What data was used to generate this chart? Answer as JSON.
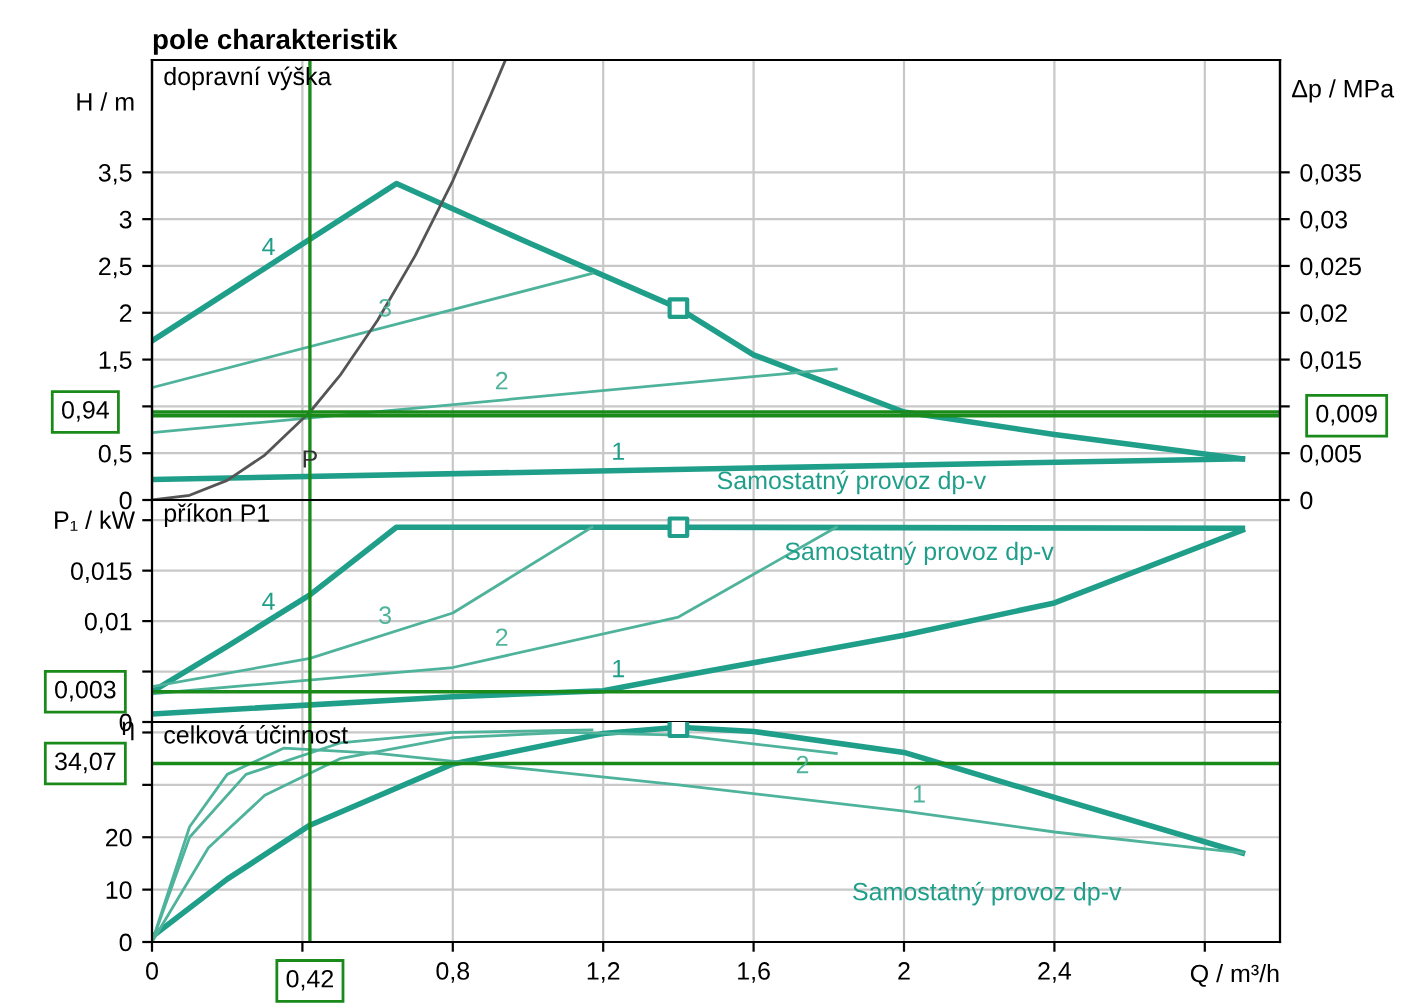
{
  "chart_data": [
    {
      "type": "line",
      "title": "pole charakteristik",
      "subtitle": "dopravní výška",
      "ylabel": "H / m",
      "y2label": "Δp / MPa",
      "xlim": [
        0,
        3.0
      ],
      "xticks": [
        0,
        0.4,
        0.8,
        1.2,
        1.6,
        2,
        2.4,
        2.8
      ],
      "tick_labels": "y",
      "ylim": [
        0,
        4.7
      ],
      "yticks": [
        0,
        {
          "value": 0.5,
          "label": "0,5"
        },
        {
          "value": 1,
          "label": null
        },
        {
          "value": 1.5,
          "label": "1,5"
        },
        2,
        {
          "value": 2.5,
          "label": "2,5"
        },
        3,
        {
          "value": 3.5,
          "label": "3,5"
        }
      ],
      "y2lim": [
        0,
        0.047
      ],
      "y2ticks": [
        0,
        {
          "value": 0.005,
          "label": "0,005"
        },
        {
          "value": 0.01,
          "label": null
        },
        {
          "value": 0.015,
          "label": "0,015"
        },
        {
          "value": 0.02,
          "label": "0,02"
        },
        {
          "value": 0.025,
          "label": "0,025"
        },
        {
          "value": 0.03,
          "label": "0,03"
        },
        {
          "value": 0.035,
          "label": "0,035"
        }
      ],
      "grid": true,
      "series": [
        {
          "name": "4",
          "color": "#1f9e89",
          "x": [
            0,
            0.65,
            1.0,
            1.4,
            1.6,
            2.0,
            2.4,
            2.9
          ],
          "values": [
            1.7,
            3.38,
            2.75,
            2.05,
            1.55,
            0.94,
            0.7,
            0.44
          ]
        },
        {
          "name": "3",
          "color": "#4fb39b",
          "x": [
            0,
            1.17
          ],
          "values": [
            1.2,
            2.42
          ]
        },
        {
          "name": "2",
          "color": "#4fb39b",
          "x": [
            0,
            1.82
          ],
          "values": [
            0.72,
            1.4
          ]
        },
        {
          "name": "1",
          "color": "#1f9e89",
          "x": [
            0,
            2.9
          ],
          "values": [
            0.22,
            0.44
          ]
        },
        {
          "color": "#555555",
          "x": [
            0,
            0.1,
            0.2,
            0.3,
            0.42,
            0.5,
            0.6,
            0.7,
            0.8,
            0.9,
            0.94
          ],
          "values": [
            0,
            0.05,
            0.21,
            0.48,
            0.94,
            1.33,
            1.92,
            2.61,
            3.41,
            4.32,
            4.7
          ]
        },
        {
          "type": "scatter",
          "marker": "square",
          "color": "#1f9e89",
          "x": [
            1.4
          ],
          "values": [
            2.05
          ]
        }
      ],
      "ref_lines": [
        {
          "axis": "x",
          "value": 0.42,
          "label": "P",
          "color": "#1a8a1a"
        },
        {
          "axis": "y",
          "value": 0.94,
          "label": "0,94",
          "color": "#1a8a1a"
        },
        {
          "axis": "y2",
          "value": 0.009,
          "label": "0,009",
          "color": "#1a8a1a"
        }
      ],
      "annotations": [
        "Samostatný provoz dp-v"
      ]
    },
    {
      "type": "line",
      "subtitle": "příkon P1",
      "ylabel": "P₁ / kW",
      "xlim": [
        0,
        3.0
      ],
      "xticks": [
        0,
        0.4,
        0.8,
        1.2,
        1.6,
        2,
        2.4,
        2.8
      ],
      "tick_labels": "y",
      "ylim": [
        0,
        0.022
      ],
      "yticks": [
        0,
        {
          "value": 0.005,
          "label": null
        },
        {
          "value": 0.01,
          "label": "0,01"
        },
        {
          "value": 0.015,
          "label": "0,015"
        },
        {
          "value": 0.02,
          "label": null
        }
      ],
      "grid": true,
      "series": [
        {
          "name": "4",
          "color": "#1f9e89",
          "x": [
            0,
            0.2,
            0.42,
            0.65,
            1.4,
            2.9
          ],
          "values": [
            0.003,
            0.0075,
            0.0126,
            0.0193,
            0.0193,
            0.0192
          ]
        },
        {
          "name": "3",
          "color": "#4fb39b",
          "x": [
            0,
            0.42,
            0.8,
            1.17
          ],
          "values": [
            0.0035,
            0.0063,
            0.0108,
            0.0193
          ]
        },
        {
          "name": "2",
          "color": "#4fb39b",
          "x": [
            0,
            0.8,
            1.4,
            1.82
          ],
          "values": [
            0.0028,
            0.0054,
            0.0104,
            0.0193
          ]
        },
        {
          "name": "1",
          "color": "#1f9e89",
          "x": [
            0,
            0.8,
            1.2,
            1.4,
            2.0,
            2.4,
            2.9
          ],
          "values": [
            0.0008,
            0.0025,
            0.0031,
            0.0045,
            0.0086,
            0.0118,
            0.019
          ]
        },
        {
          "type": "scatter",
          "marker": "square",
          "color": "#1f9e89",
          "x": [
            1.4
          ],
          "values": [
            0.0193
          ]
        }
      ],
      "ref_lines": [
        {
          "axis": "x",
          "value": 0.42,
          "label": null,
          "color": "#1a8a1a"
        },
        {
          "axis": "y",
          "value": 0.003,
          "label": "0,003",
          "color": "#1a8a1a"
        }
      ],
      "annotations": [
        "Samostatný provoz dp-v"
      ]
    },
    {
      "type": "line",
      "subtitle": "celková účinnost",
      "ylabel": "η",
      "xlabel": "Q / m³/h",
      "xlim": [
        0,
        3.0
      ],
      "xticks": [
        0,
        {
          "value": 0.4,
          "label": null
        },
        {
          "value": 0.8,
          "label": "0,8"
        },
        {
          "value": 1.2,
          "label": "1,2"
        },
        {
          "value": 1.6,
          "label": "1,6"
        },
        2,
        {
          "value": 2.4,
          "label": "2,4"
        },
        {
          "value": 2.8,
          "label": null
        }
      ],
      "ylim": [
        0,
        42
      ],
      "yticks": [
        0,
        10,
        20,
        {
          "value": 30,
          "label": null
        },
        {
          "value": 40,
          "label": null
        }
      ],
      "grid": true,
      "series": [
        {
          "color": "#1f9e89",
          "x": [
            0,
            0.2,
            0.42,
            0.8,
            1.2,
            1.4,
            1.6,
            2.0,
            2.4,
            2.9
          ],
          "values": [
            1,
            12,
            22.3,
            34,
            39.8,
            41,
            40.2,
            36.2,
            27.6,
            17
          ]
        },
        {
          "color": "#4fb39b",
          "x": [
            0,
            0.1,
            0.25,
            0.5,
            0.8,
            1.17
          ],
          "values": [
            0,
            20,
            32,
            38,
            40,
            40.5
          ]
        },
        {
          "name": "2",
          "color": "#4fb39b",
          "x": [
            0,
            0.15,
            0.3,
            0.5,
            0.8,
            1.1,
            1.4,
            1.82
          ],
          "values": [
            0,
            18,
            28,
            35,
            39,
            40,
            39.5,
            36
          ]
        },
        {
          "name": "1",
          "color": "#4fb39b",
          "x": [
            0,
            0.1,
            0.2,
            0.35,
            0.6,
            1.0,
            1.4,
            2.0,
            2.4,
            2.9
          ],
          "values": [
            0,
            22,
            32,
            37,
            36,
            33,
            30,
            25,
            21,
            17
          ]
        },
        {
          "type": "scatter",
          "marker": "square",
          "color": "#1f9e89",
          "x": [
            1.4
          ],
          "values": [
            41
          ]
        }
      ],
      "ref_lines": [
        {
          "axis": "x",
          "value": 0.42,
          "label": "0,42",
          "color": "#1a8a1a"
        },
        {
          "axis": "y",
          "value": 34.07,
          "label": "34,07",
          "color": "#1a8a1a"
        }
      ],
      "annotations": [
        "Samostatný provoz dp-v"
      ]
    }
  ]
}
